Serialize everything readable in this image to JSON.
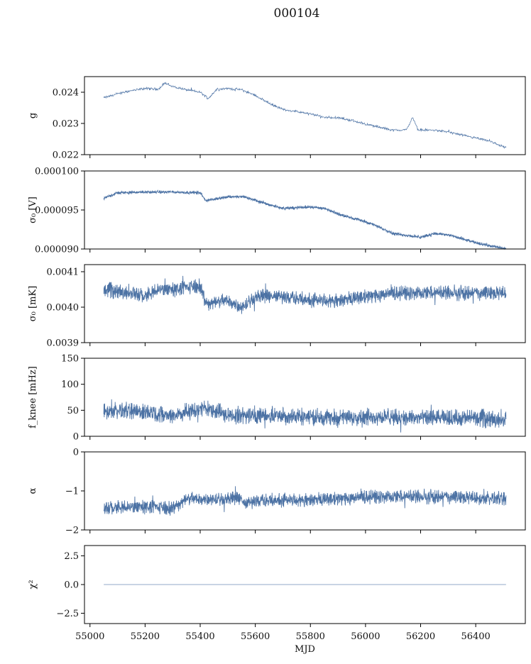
{
  "chart_data": {
    "type": "line",
    "title": "000104",
    "xlabel": "MJD",
    "x_range": [
      55050,
      56510
    ],
    "xlim": [
      54980,
      56580
    ],
    "xticks": [
      55000,
      55200,
      55400,
      55600,
      55800,
      56000,
      56200,
      56400
    ],
    "series_color": "#4c72a4",
    "panels": [
      {
        "ylabel": "g",
        "ylim": [
          0.022,
          0.0245
        ],
        "yticks": [
          "0.022",
          "0.023",
          "0.024"
        ],
        "style": "thin",
        "trend": [
          [
            55050,
            0.02382
          ],
          [
            55100,
            0.02395
          ],
          [
            55150,
            0.02405
          ],
          [
            55200,
            0.02412
          ],
          [
            55250,
            0.0241
          ],
          [
            55270,
            0.0243
          ],
          [
            55300,
            0.02418
          ],
          [
            55350,
            0.02408
          ],
          [
            55400,
            0.024
          ],
          [
            55430,
            0.0238
          ],
          [
            55460,
            0.0241
          ],
          [
            55500,
            0.02412
          ],
          [
            55550,
            0.02408
          ],
          [
            55600,
            0.0239
          ],
          [
            55650,
            0.02365
          ],
          [
            55700,
            0.02345
          ],
          [
            55750,
            0.02338
          ],
          [
            55800,
            0.0233
          ],
          [
            55850,
            0.0232
          ],
          [
            55900,
            0.02318
          ],
          [
            55950,
            0.0231
          ],
          [
            56000,
            0.02298
          ],
          [
            56050,
            0.02288
          ],
          [
            56100,
            0.02278
          ],
          [
            56150,
            0.0228
          ],
          [
            56170,
            0.0232
          ],
          [
            56190,
            0.0228
          ],
          [
            56250,
            0.02278
          ],
          [
            56300,
            0.02273
          ],
          [
            56350,
            0.02262
          ],
          [
            56400,
            0.02253
          ],
          [
            56450,
            0.02243
          ],
          [
            56510,
            0.02222
          ]
        ],
        "noise": 3e-05
      },
      {
        "ylabel": "σ₀ [V]",
        "ylim": [
          9e-05,
          0.0001
        ],
        "yticks": [
          "0.000090",
          "0.000095",
          "0.000100"
        ],
        "style": "band",
        "trend": [
          [
            55050,
            9.65e-05
          ],
          [
            55100,
            9.72e-05
          ],
          [
            55200,
            9.73e-05
          ],
          [
            55300,
            9.73e-05
          ],
          [
            55400,
            9.72e-05
          ],
          [
            55420,
            9.62e-05
          ],
          [
            55500,
            9.67e-05
          ],
          [
            55560,
            9.67e-05
          ],
          [
            55620,
            9.6e-05
          ],
          [
            55700,
            9.52e-05
          ],
          [
            55800,
            9.54e-05
          ],
          [
            55850,
            9.52e-05
          ],
          [
            55900,
            9.45e-05
          ],
          [
            56000,
            9.35e-05
          ],
          [
            56050,
            9.28e-05
          ],
          [
            56100,
            9.2e-05
          ],
          [
            56200,
            9.15e-05
          ],
          [
            56250,
            9.2e-05
          ],
          [
            56300,
            9.18e-05
          ],
          [
            56400,
            9.08e-05
          ],
          [
            56510,
            9e-05
          ]
        ],
        "noise": 1.4e-07
      },
      {
        "ylabel": "σ₀ [mK]",
        "ylim": [
          0.0039,
          0.00412
        ],
        "yticks": [
          "0.0039",
          "0.0040",
          "0.0041"
        ],
        "style": "band",
        "trend": [
          [
            55050,
            0.00405
          ],
          [
            55150,
            0.00404
          ],
          [
            55200,
            0.00403
          ],
          [
            55250,
            0.00405
          ],
          [
            55300,
            0.00405
          ],
          [
            55400,
            0.00406
          ],
          [
            55420,
            0.00401
          ],
          [
            55500,
            0.00402
          ],
          [
            55550,
            0.004
          ],
          [
            55600,
            0.00403
          ],
          [
            55700,
            0.00403
          ],
          [
            55800,
            0.00402
          ],
          [
            55900,
            0.00402
          ],
          [
            56000,
            0.00403
          ],
          [
            56100,
            0.00404
          ],
          [
            56200,
            0.00404
          ],
          [
            56300,
            0.00404
          ],
          [
            56400,
            0.00404
          ],
          [
            56510,
            0.00404
          ]
        ],
        "noise": 1.5e-05
      },
      {
        "ylabel": "f_knee [mHz]",
        "ylim": [
          0,
          150
        ],
        "yticks": [
          "0",
          "50",
          "100",
          "150"
        ],
        "style": "band",
        "trend": [
          [
            55050,
            50
          ],
          [
            55200,
            48
          ],
          [
            55300,
            40
          ],
          [
            55420,
            55
          ],
          [
            55500,
            40
          ],
          [
            55700,
            40
          ],
          [
            55800,
            38
          ],
          [
            55900,
            35
          ],
          [
            56000,
            38
          ],
          [
            56200,
            35
          ],
          [
            56400,
            35
          ],
          [
            56510,
            32
          ]
        ],
        "noise": 12
      },
      {
        "ylabel": "α",
        "ylim": [
          -2,
          0
        ],
        "yticks": [
          "−2",
          "−1",
          "0"
        ],
        "style": "band",
        "trend": [
          [
            55050,
            -1.45
          ],
          [
            55200,
            -1.4
          ],
          [
            55300,
            -1.45
          ],
          [
            55350,
            -1.2
          ],
          [
            55550,
            -1.2
          ],
          [
            55560,
            -1.35
          ],
          [
            55600,
            -1.25
          ],
          [
            55900,
            -1.2
          ],
          [
            56000,
            -1.15
          ],
          [
            56300,
            -1.15
          ],
          [
            56510,
            -1.2
          ]
        ],
        "noise": 0.13
      },
      {
        "ylabel": "χ²",
        "ylim": [
          -3.4,
          3.4
        ],
        "yticks": [
          "−2.5",
          "0.0",
          "2.5"
        ],
        "style": "flat",
        "trend": [
          [
            55050,
            0
          ],
          [
            56510,
            0
          ]
        ],
        "noise": 0
      }
    ]
  }
}
